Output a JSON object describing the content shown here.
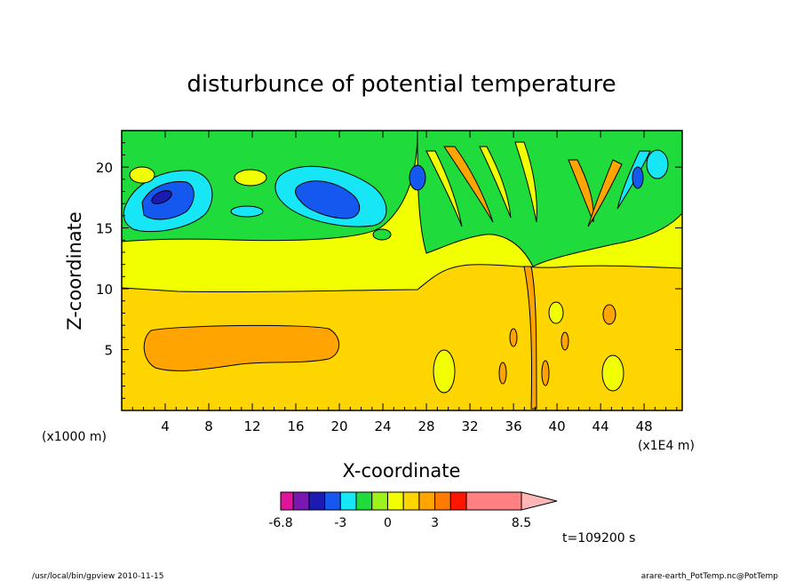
{
  "chart_data": {
    "type": "heatmap",
    "title": "disturbunce of potential temperature",
    "xlabel": "X-coordinate",
    "ylabel": "Z-coordinate",
    "x_unit_left": "(x1000 m)",
    "x_unit_right": "(x1E4 m)",
    "xlim": [
      0,
      51.5
    ],
    "ylim": [
      0,
      23
    ],
    "x_ticks": [
      "4",
      "8",
      "12",
      "16",
      "20",
      "24",
      "28",
      "32",
      "36",
      "40",
      "44",
      "48"
    ],
    "y_ticks": [
      "5",
      "10",
      "15",
      "20"
    ],
    "colorbar": {
      "min_label": "-6.8",
      "labels": [
        "-6.8",
        "-3",
        "0",
        "3",
        "8.5"
      ],
      "label_values": [
        -6.8,
        -3,
        0,
        3,
        8.5
      ],
      "range": [
        -6.8,
        8.5
      ],
      "levels": [
        -6.8,
        -6,
        -5,
        -4,
        -3,
        -2,
        -1,
        0,
        1,
        2,
        3,
        4,
        5,
        8.5
      ],
      "colors": [
        "#e0139b",
        "#7a17b0",
        "#1b1bb4",
        "#1458f0",
        "#16e6f5",
        "#1fdc3c",
        "#9cf21a",
        "#f2ff00",
        "#ffd500",
        "#ffa400",
        "#ff7a00",
        "#ff1500",
        "#ff8080"
      ],
      "extend_color": "#ffb6b6"
    },
    "field_regions": {
      "lower_layer_level": 1,
      "middle_layer_level": 0,
      "upper_layer_level": -1,
      "upper_right_contrast": "mixed"
    },
    "time_label": "t=109200 s"
  },
  "footer": {
    "left": "/usr/local/bin/gpview   2010-11-15",
    "right": "arare-earth_PotTemp.nc@PotTemp"
  }
}
